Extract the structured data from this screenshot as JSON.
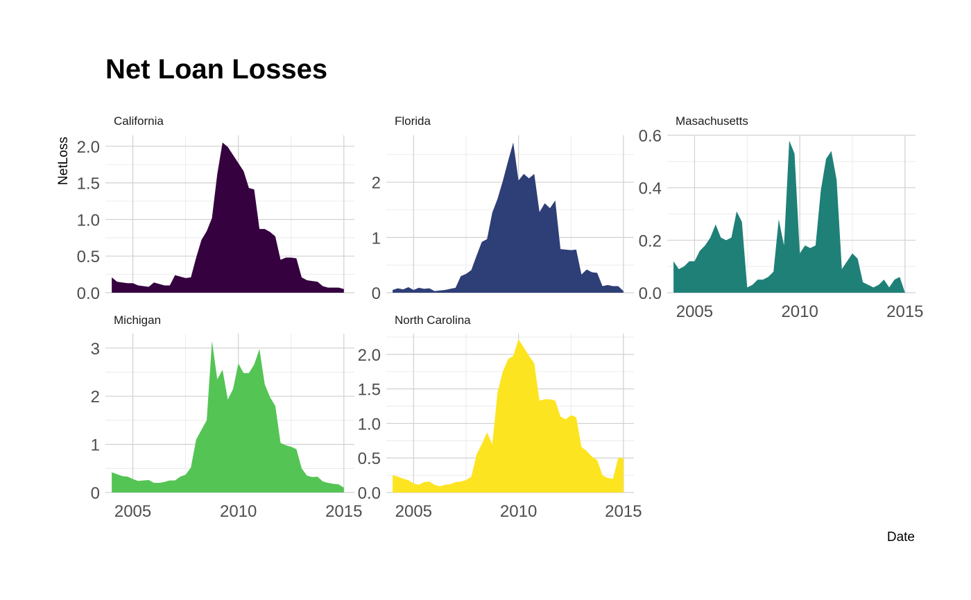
{
  "chart_data": {
    "type": "area",
    "title": "Net Loan Losses",
    "xlabel": "Date",
    "ylabel": "NetLoss",
    "xlim": [
      2003.7,
      2015.5
    ],
    "x_ticks": [
      2005,
      2010,
      2015
    ],
    "grid": true,
    "legend": "none",
    "panels": [
      {
        "name": "California",
        "color": "#35013f",
        "ylim": [
          0,
          2.15
        ],
        "y_ticks": [
          0.0,
          0.5,
          1.0,
          1.5,
          2.0
        ],
        "y_tick_labels": [
          "0.0",
          "0.5",
          "1.0",
          "1.5",
          "2.0"
        ],
        "x": [
          2004.0,
          2004.25,
          2004.5,
          2004.75,
          2005.0,
          2005.25,
          2005.5,
          2005.75,
          2006.0,
          2006.25,
          2006.5,
          2006.75,
          2007.0,
          2007.25,
          2007.5,
          2007.75,
          2008.0,
          2008.25,
          2008.5,
          2008.75,
          2009.0,
          2009.25,
          2009.5,
          2009.75,
          2010.0,
          2010.25,
          2010.5,
          2010.75,
          2011.0,
          2011.25,
          2011.5,
          2011.75,
          2012.0,
          2012.25,
          2012.5,
          2012.75,
          2013.0,
          2013.25,
          2013.5,
          2013.75,
          2014.0,
          2014.25,
          2014.5,
          2014.75,
          2015.0
        ],
        "y": [
          0.21,
          0.15,
          0.14,
          0.13,
          0.13,
          0.1,
          0.09,
          0.08,
          0.14,
          0.12,
          0.1,
          0.1,
          0.24,
          0.22,
          0.2,
          0.21,
          0.48,
          0.72,
          0.84,
          1.02,
          1.62,
          2.05,
          1.99,
          1.88,
          1.77,
          1.66,
          1.43,
          1.41,
          0.87,
          0.87,
          0.83,
          0.77,
          0.45,
          0.48,
          0.48,
          0.47,
          0.21,
          0.17,
          0.16,
          0.15,
          0.09,
          0.07,
          0.07,
          0.07,
          0.05
        ]
      },
      {
        "name": "Florida",
        "color": "#2e3e77",
        "ylim": [
          0,
          2.85
        ],
        "y_ticks": [
          0,
          1,
          2
        ],
        "y_tick_labels": [
          "0",
          "1",
          "2"
        ],
        "x": [
          2004.0,
          2004.25,
          2004.5,
          2004.75,
          2005.0,
          2005.25,
          2005.5,
          2005.75,
          2006.0,
          2006.25,
          2006.5,
          2006.75,
          2007.0,
          2007.25,
          2007.5,
          2007.75,
          2008.0,
          2008.25,
          2008.5,
          2008.75,
          2009.0,
          2009.25,
          2009.5,
          2009.75,
          2010.0,
          2010.25,
          2010.5,
          2010.75,
          2011.0,
          2011.25,
          2011.5,
          2011.75,
          2012.0,
          2012.25,
          2012.5,
          2012.75,
          2013.0,
          2013.25,
          2013.5,
          2013.75,
          2014.0,
          2014.25,
          2014.5,
          2014.75,
          2015.0
        ],
        "y": [
          0.05,
          0.08,
          0.06,
          0.1,
          0.05,
          0.09,
          0.07,
          0.08,
          0.03,
          0.04,
          0.05,
          0.07,
          0.09,
          0.3,
          0.34,
          0.41,
          0.67,
          0.92,
          0.97,
          1.45,
          1.7,
          2.02,
          2.38,
          2.72,
          2.03,
          2.15,
          2.07,
          2.15,
          1.46,
          1.62,
          1.53,
          1.67,
          0.79,
          0.78,
          0.77,
          0.78,
          0.33,
          0.42,
          0.37,
          0.36,
          0.12,
          0.14,
          0.12,
          0.12,
          0.03
        ]
      },
      {
        "name": "Masachusetts",
        "color": "#1f8078",
        "ylim": [
          0,
          0.6
        ],
        "y_ticks": [
          0.0,
          0.2,
          0.4,
          0.6
        ],
        "y_tick_labels": [
          "0.0",
          "0.2",
          "0.4",
          "0.6"
        ],
        "x": [
          2004.0,
          2004.25,
          2004.5,
          2004.75,
          2005.0,
          2005.25,
          2005.5,
          2005.75,
          2006.0,
          2006.25,
          2006.5,
          2006.75,
          2007.0,
          2007.25,
          2007.5,
          2007.75,
          2008.0,
          2008.25,
          2008.5,
          2008.75,
          2009.0,
          2009.25,
          2009.5,
          2009.75,
          2010.0,
          2010.25,
          2010.5,
          2010.75,
          2011.0,
          2011.25,
          2011.5,
          2011.75,
          2012.0,
          2012.25,
          2012.5,
          2012.75,
          2013.0,
          2013.25,
          2013.5,
          2013.75,
          2014.0,
          2014.25,
          2014.5,
          2014.75,
          2015.0
        ],
        "y": [
          0.12,
          0.09,
          0.1,
          0.12,
          0.12,
          0.16,
          0.18,
          0.21,
          0.26,
          0.21,
          0.2,
          0.21,
          0.31,
          0.27,
          0.02,
          0.03,
          0.05,
          0.05,
          0.06,
          0.08,
          0.28,
          0.18,
          0.58,
          0.53,
          0.15,
          0.18,
          0.17,
          0.18,
          0.39,
          0.51,
          0.54,
          0.43,
          0.09,
          0.12,
          0.15,
          0.13,
          0.04,
          0.03,
          0.02,
          0.03,
          0.05,
          0.02,
          0.05,
          0.06,
          0.0
        ]
      },
      {
        "name": "Michigan",
        "color": "#54c454",
        "ylim": [
          0,
          3.3
        ],
        "y_ticks": [
          0,
          1,
          2,
          3
        ],
        "y_tick_labels": [
          "0",
          "1",
          "2",
          "3"
        ],
        "x": [
          2004.0,
          2004.25,
          2004.5,
          2004.75,
          2005.0,
          2005.25,
          2005.5,
          2005.75,
          2006.0,
          2006.25,
          2006.5,
          2006.75,
          2007.0,
          2007.25,
          2007.5,
          2007.75,
          2008.0,
          2008.25,
          2008.5,
          2008.75,
          2009.0,
          2009.25,
          2009.5,
          2009.75,
          2010.0,
          2010.25,
          2010.5,
          2010.75,
          2011.0,
          2011.25,
          2011.5,
          2011.75,
          2012.0,
          2012.25,
          2012.5,
          2012.75,
          2013.0,
          2013.25,
          2013.5,
          2013.75,
          2014.0,
          2014.25,
          2014.5,
          2014.75,
          2015.0
        ],
        "y": [
          0.42,
          0.38,
          0.34,
          0.33,
          0.28,
          0.24,
          0.25,
          0.26,
          0.2,
          0.2,
          0.22,
          0.25,
          0.25,
          0.33,
          0.37,
          0.52,
          1.1,
          1.3,
          1.5,
          3.15,
          2.35,
          2.55,
          1.93,
          2.15,
          2.68,
          2.48,
          2.48,
          2.66,
          2.98,
          2.25,
          1.98,
          1.8,
          1.03,
          0.98,
          0.95,
          0.9,
          0.5,
          0.35,
          0.32,
          0.33,
          0.23,
          0.2,
          0.18,
          0.17,
          0.1
        ]
      },
      {
        "name": "North Carolina",
        "color": "#fde421",
        "ylim": [
          0,
          2.3
        ],
        "y_ticks": [
          0.0,
          0.5,
          1.0,
          1.5,
          2.0
        ],
        "y_tick_labels": [
          "0.0",
          "0.5",
          "1.0",
          "1.5",
          "2.0"
        ],
        "x": [
          2004.0,
          2004.25,
          2004.5,
          2004.75,
          2005.0,
          2005.25,
          2005.5,
          2005.75,
          2006.0,
          2006.25,
          2006.5,
          2006.75,
          2007.0,
          2007.25,
          2007.5,
          2007.75,
          2008.0,
          2008.25,
          2008.5,
          2008.75,
          2009.0,
          2009.25,
          2009.5,
          2009.75,
          2010.0,
          2010.25,
          2010.5,
          2010.75,
          2011.0,
          2011.25,
          2011.5,
          2011.75,
          2012.0,
          2012.25,
          2012.5,
          2012.75,
          2013.0,
          2013.25,
          2013.5,
          2013.75,
          2014.0,
          2014.25,
          2014.5,
          2014.75,
          2015.0
        ],
        "y": [
          0.25,
          0.23,
          0.2,
          0.18,
          0.13,
          0.11,
          0.15,
          0.16,
          0.11,
          0.09,
          0.11,
          0.12,
          0.15,
          0.16,
          0.18,
          0.23,
          0.55,
          0.7,
          0.87,
          0.7,
          1.45,
          1.75,
          1.93,
          1.98,
          2.22,
          2.1,
          1.98,
          1.87,
          1.33,
          1.35,
          1.35,
          1.33,
          1.1,
          1.06,
          1.12,
          1.09,
          0.66,
          0.6,
          0.52,
          0.47,
          0.25,
          0.21,
          0.2,
          0.5,
          0.5
        ]
      }
    ]
  }
}
